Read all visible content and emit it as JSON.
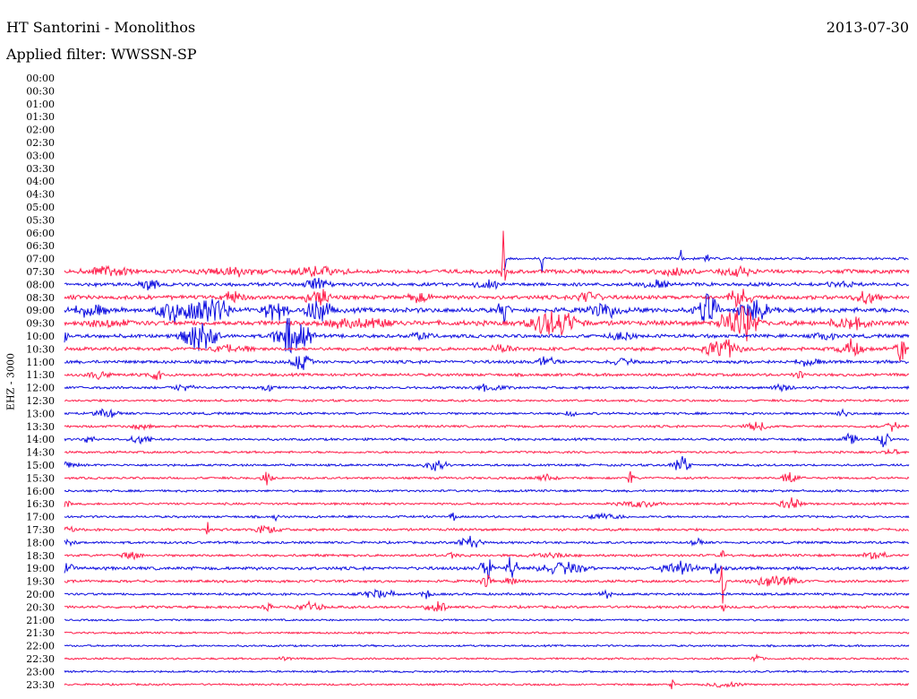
{
  "header": {
    "station": "HT Santorini - Monolithos",
    "date": "2013-07-30",
    "filter": "Applied filter: WWSSN-SP"
  },
  "chart_data": {
    "type": "line",
    "title": "HT Santorini - Monolithos",
    "date": "2013-07-30",
    "filter": "Applied filter: WWSSN-SP",
    "ylabel": "EHZ - 3000",
    "colors": [
      "#ff1f4b",
      "#1010e0"
    ],
    "rows": [
      {
        "label": "00:00",
        "color_index": 1,
        "noise": 0,
        "start": 0
      },
      {
        "label": "00:30",
        "color_index": 0,
        "noise": 0,
        "start": 0
      },
      {
        "label": "01:00",
        "color_index": 1,
        "noise": 0,
        "start": 0
      },
      {
        "label": "01:30",
        "color_index": 0,
        "noise": 0,
        "start": 0
      },
      {
        "label": "02:00",
        "color_index": 1,
        "noise": 0,
        "start": 0
      },
      {
        "label": "02:30",
        "color_index": 0,
        "noise": 0,
        "start": 0
      },
      {
        "label": "03:00",
        "color_index": 1,
        "noise": 0,
        "start": 0
      },
      {
        "label": "03:30",
        "color_index": 0,
        "noise": 0,
        "start": 0
      },
      {
        "label": "04:00",
        "color_index": 1,
        "noise": 0,
        "start": 0
      },
      {
        "label": "04:30",
        "color_index": 0,
        "noise": 0,
        "start": 0
      },
      {
        "label": "05:00",
        "color_index": 1,
        "noise": 0,
        "start": 0
      },
      {
        "label": "05:30",
        "color_index": 0,
        "noise": 0,
        "start": 0
      },
      {
        "label": "06:00",
        "color_index": 1,
        "noise": 0,
        "start": 0
      },
      {
        "label": "06:30",
        "color_index": 0,
        "noise": 0,
        "start": 0
      },
      {
        "label": "07:00",
        "color_index": 1,
        "noise": 1.5,
        "start": 0.52,
        "events": [
          [
            0.52,
            70,
            0.003
          ],
          [
            0.565,
            20,
            0.003
          ],
          [
            0.73,
            18,
            0.003
          ],
          [
            0.76,
            10,
            0.004
          ]
        ]
      },
      {
        "label": "07:30",
        "color_index": 0,
        "noise": 2.5,
        "start": 0,
        "events": [
          [
            0.05,
            6,
            0.04
          ],
          [
            0.2,
            5,
            0.05
          ],
          [
            0.3,
            6,
            0.04
          ],
          [
            0.52,
            60,
            0.003
          ],
          [
            0.72,
            5,
            0.03
          ],
          [
            0.8,
            6,
            0.03
          ]
        ]
      },
      {
        "label": "08:00",
        "color_index": 1,
        "noise": 2.2,
        "start": 0,
        "events": [
          [
            0.1,
            6,
            0.02
          ],
          [
            0.3,
            10,
            0.02
          ],
          [
            0.5,
            6,
            0.02
          ],
          [
            0.7,
            6,
            0.02
          ],
          [
            0.92,
            5,
            0.02
          ]
        ]
      },
      {
        "label": "08:30",
        "color_index": 0,
        "noise": 2.5,
        "start": 0,
        "events": [
          [
            0.2,
            8,
            0.02
          ],
          [
            0.3,
            12,
            0.02
          ],
          [
            0.42,
            6,
            0.02
          ],
          [
            0.62,
            8,
            0.02
          ],
          [
            0.8,
            14,
            0.02
          ],
          [
            0.95,
            10,
            0.02
          ]
        ]
      },
      {
        "label": "09:00",
        "color_index": 1,
        "noise": 3,
        "start": 0,
        "events": [
          [
            0.03,
            8,
            0.03
          ],
          [
            0.13,
            14,
            0.03
          ],
          [
            0.17,
            28,
            0.03
          ],
          [
            0.25,
            16,
            0.02
          ],
          [
            0.3,
            22,
            0.02
          ],
          [
            0.52,
            14,
            0.01
          ],
          [
            0.64,
            10,
            0.03
          ],
          [
            0.76,
            22,
            0.02
          ],
          [
            0.82,
            14,
            0.03
          ]
        ]
      },
      {
        "label": "09:30",
        "color_index": 0,
        "noise": 3,
        "start": 0,
        "events": [
          [
            0.05,
            4,
            0.04
          ],
          [
            0.35,
            8,
            0.05
          ],
          [
            0.58,
            20,
            0.04
          ],
          [
            0.8,
            28,
            0.03
          ],
          [
            0.93,
            8,
            0.03
          ]
        ]
      },
      {
        "label": "10:00",
        "color_index": 1,
        "noise": 2.2,
        "start": 0,
        "events": [
          [
            0.0,
            16,
            0.005
          ],
          [
            0.16,
            22,
            0.03
          ],
          [
            0.27,
            30,
            0.03
          ],
          [
            0.42,
            5,
            0.02
          ],
          [
            0.66,
            6,
            0.02
          ],
          [
            0.9,
            5,
            0.02
          ]
        ]
      },
      {
        "label": "10:30",
        "color_index": 0,
        "noise": 2.2,
        "start": 0,
        "events": [
          [
            0.2,
            5,
            0.03
          ],
          [
            0.52,
            6,
            0.02
          ],
          [
            0.78,
            14,
            0.03
          ],
          [
            0.93,
            12,
            0.02
          ],
          [
            0.99,
            20,
            0.01
          ]
        ]
      },
      {
        "label": "11:00",
        "color_index": 1,
        "noise": 2,
        "start": 0,
        "events": [
          [
            0.28,
            14,
            0.015
          ],
          [
            0.57,
            6,
            0.02
          ],
          [
            0.66,
            4,
            0.02
          ],
          [
            0.88,
            5,
            0.02
          ]
        ]
      },
      {
        "label": "11:30",
        "color_index": 0,
        "noise": 1.8,
        "start": 0,
        "events": [
          [
            0.04,
            5,
            0.02
          ],
          [
            0.11,
            10,
            0.01
          ],
          [
            0.87,
            5,
            0.01
          ]
        ]
      },
      {
        "label": "12:00",
        "color_index": 1,
        "noise": 1.6,
        "start": 0,
        "events": [
          [
            0.14,
            4,
            0.02
          ],
          [
            0.24,
            6,
            0.01
          ],
          [
            0.5,
            4,
            0.03
          ],
          [
            0.85,
            4,
            0.02
          ]
        ]
      },
      {
        "label": "12:30",
        "color_index": 0,
        "noise": 1.4,
        "start": 0,
        "events": []
      },
      {
        "label": "13:00",
        "color_index": 1,
        "noise": 1.5,
        "start": 0,
        "events": [
          [
            0.05,
            6,
            0.02
          ],
          [
            0.6,
            4,
            0.01
          ],
          [
            0.92,
            7,
            0.01
          ]
        ]
      },
      {
        "label": "13:30",
        "color_index": 0,
        "noise": 1.5,
        "start": 0,
        "events": [
          [
            0.09,
            3,
            0.02
          ],
          [
            0.82,
            6,
            0.02
          ],
          [
            0.98,
            7,
            0.01
          ]
        ]
      },
      {
        "label": "14:00",
        "color_index": 1,
        "noise": 1.5,
        "start": 0,
        "events": [
          [
            0.03,
            5,
            0.01
          ],
          [
            0.09,
            6,
            0.02
          ],
          [
            0.93,
            10,
            0.01
          ],
          [
            0.97,
            12,
            0.01
          ]
        ]
      },
      {
        "label": "14:30",
        "color_index": 0,
        "noise": 1.4,
        "start": 0,
        "events": [
          [
            0.98,
            6,
            0.01
          ]
        ]
      },
      {
        "label": "15:00",
        "color_index": 1,
        "noise": 1.4,
        "start": 0,
        "events": [
          [
            0.0,
            4,
            0.02
          ],
          [
            0.44,
            8,
            0.02
          ],
          [
            0.73,
            12,
            0.015
          ]
        ]
      },
      {
        "label": "15:30",
        "color_index": 0,
        "noise": 1.4,
        "start": 0,
        "events": [
          [
            0.24,
            8,
            0.01
          ],
          [
            0.57,
            4,
            0.02
          ],
          [
            0.67,
            14,
            0.005
          ],
          [
            0.86,
            9,
            0.015
          ]
        ]
      },
      {
        "label": "16:00",
        "color_index": 1,
        "noise": 1.4,
        "start": 0,
        "events": []
      },
      {
        "label": "16:30",
        "color_index": 0,
        "noise": 1.4,
        "start": 0,
        "events": [
          [
            0.0,
            5,
            0.01
          ],
          [
            0.68,
            4,
            0.04
          ],
          [
            0.86,
            7,
            0.02
          ]
        ]
      },
      {
        "label": "17:00",
        "color_index": 1,
        "noise": 1.4,
        "start": 0,
        "events": [
          [
            0.25,
            6,
            0.005
          ],
          [
            0.46,
            7,
            0.005
          ],
          [
            0.64,
            4,
            0.03
          ]
        ]
      },
      {
        "label": "17:30",
        "color_index": 0,
        "noise": 1.6,
        "start": 0,
        "events": [
          [
            0.0,
            4,
            0.02
          ],
          [
            0.17,
            14,
            0.003
          ],
          [
            0.24,
            5,
            0.02
          ]
        ]
      },
      {
        "label": "18:00",
        "color_index": 1,
        "noise": 1.5,
        "start": 0,
        "events": [
          [
            0.0,
            4,
            0.02
          ],
          [
            0.48,
            8,
            0.02
          ],
          [
            0.75,
            6,
            0.01
          ]
        ]
      },
      {
        "label": "18:30",
        "color_index": 0,
        "noise": 1.6,
        "start": 0,
        "events": [
          [
            0.08,
            4,
            0.02
          ],
          [
            0.46,
            6,
            0.01
          ],
          [
            0.57,
            4,
            0.03
          ],
          [
            0.78,
            12,
            0.005
          ],
          [
            0.96,
            6,
            0.02
          ]
        ]
      },
      {
        "label": "19:00",
        "color_index": 1,
        "noise": 2,
        "start": 0,
        "events": [
          [
            0.0,
            6,
            0.02
          ],
          [
            0.5,
            18,
            0.01
          ],
          [
            0.53,
            18,
            0.01
          ],
          [
            0.59,
            8,
            0.04
          ],
          [
            0.73,
            10,
            0.03
          ],
          [
            0.77,
            8,
            0.01
          ]
        ]
      },
      {
        "label": "19:30",
        "color_index": 0,
        "noise": 1.6,
        "start": 0,
        "events": [
          [
            0.5,
            10,
            0.01
          ],
          [
            0.53,
            6,
            0.01
          ],
          [
            0.78,
            30,
            0.005
          ],
          [
            0.84,
            8,
            0.04
          ]
        ]
      },
      {
        "label": "20:00",
        "color_index": 1,
        "noise": 1.5,
        "start": 0,
        "events": [
          [
            0.37,
            6,
            0.03
          ],
          [
            0.43,
            5,
            0.01
          ],
          [
            0.64,
            6,
            0.01
          ]
        ]
      },
      {
        "label": "20:30",
        "color_index": 0,
        "noise": 1.6,
        "start": 0,
        "events": [
          [
            0.24,
            5,
            0.01
          ],
          [
            0.29,
            7,
            0.02
          ],
          [
            0.44,
            7,
            0.02
          ],
          [
            0.78,
            6,
            0.005
          ]
        ]
      },
      {
        "label": "21:00",
        "color_index": 1,
        "noise": 1.2,
        "start": 0,
        "events": []
      },
      {
        "label": "21:30",
        "color_index": 0,
        "noise": 1.2,
        "start": 0,
        "events": []
      },
      {
        "label": "22:00",
        "color_index": 1,
        "noise": 1.2,
        "start": 0,
        "events": []
      },
      {
        "label": "22:30",
        "color_index": 0,
        "noise": 1.2,
        "start": 0,
        "events": [
          [
            0.26,
            3,
            0.01
          ],
          [
            0.82,
            5,
            0.01
          ]
        ]
      },
      {
        "label": "23:00",
        "color_index": 1,
        "noise": 1.2,
        "start": 0,
        "events": []
      },
      {
        "label": "23:30",
        "color_index": 0,
        "noise": 1.2,
        "start": 0,
        "events": [
          [
            0.72,
            6,
            0.005
          ],
          [
            0.78,
            4,
            0.03
          ]
        ]
      }
    ]
  }
}
